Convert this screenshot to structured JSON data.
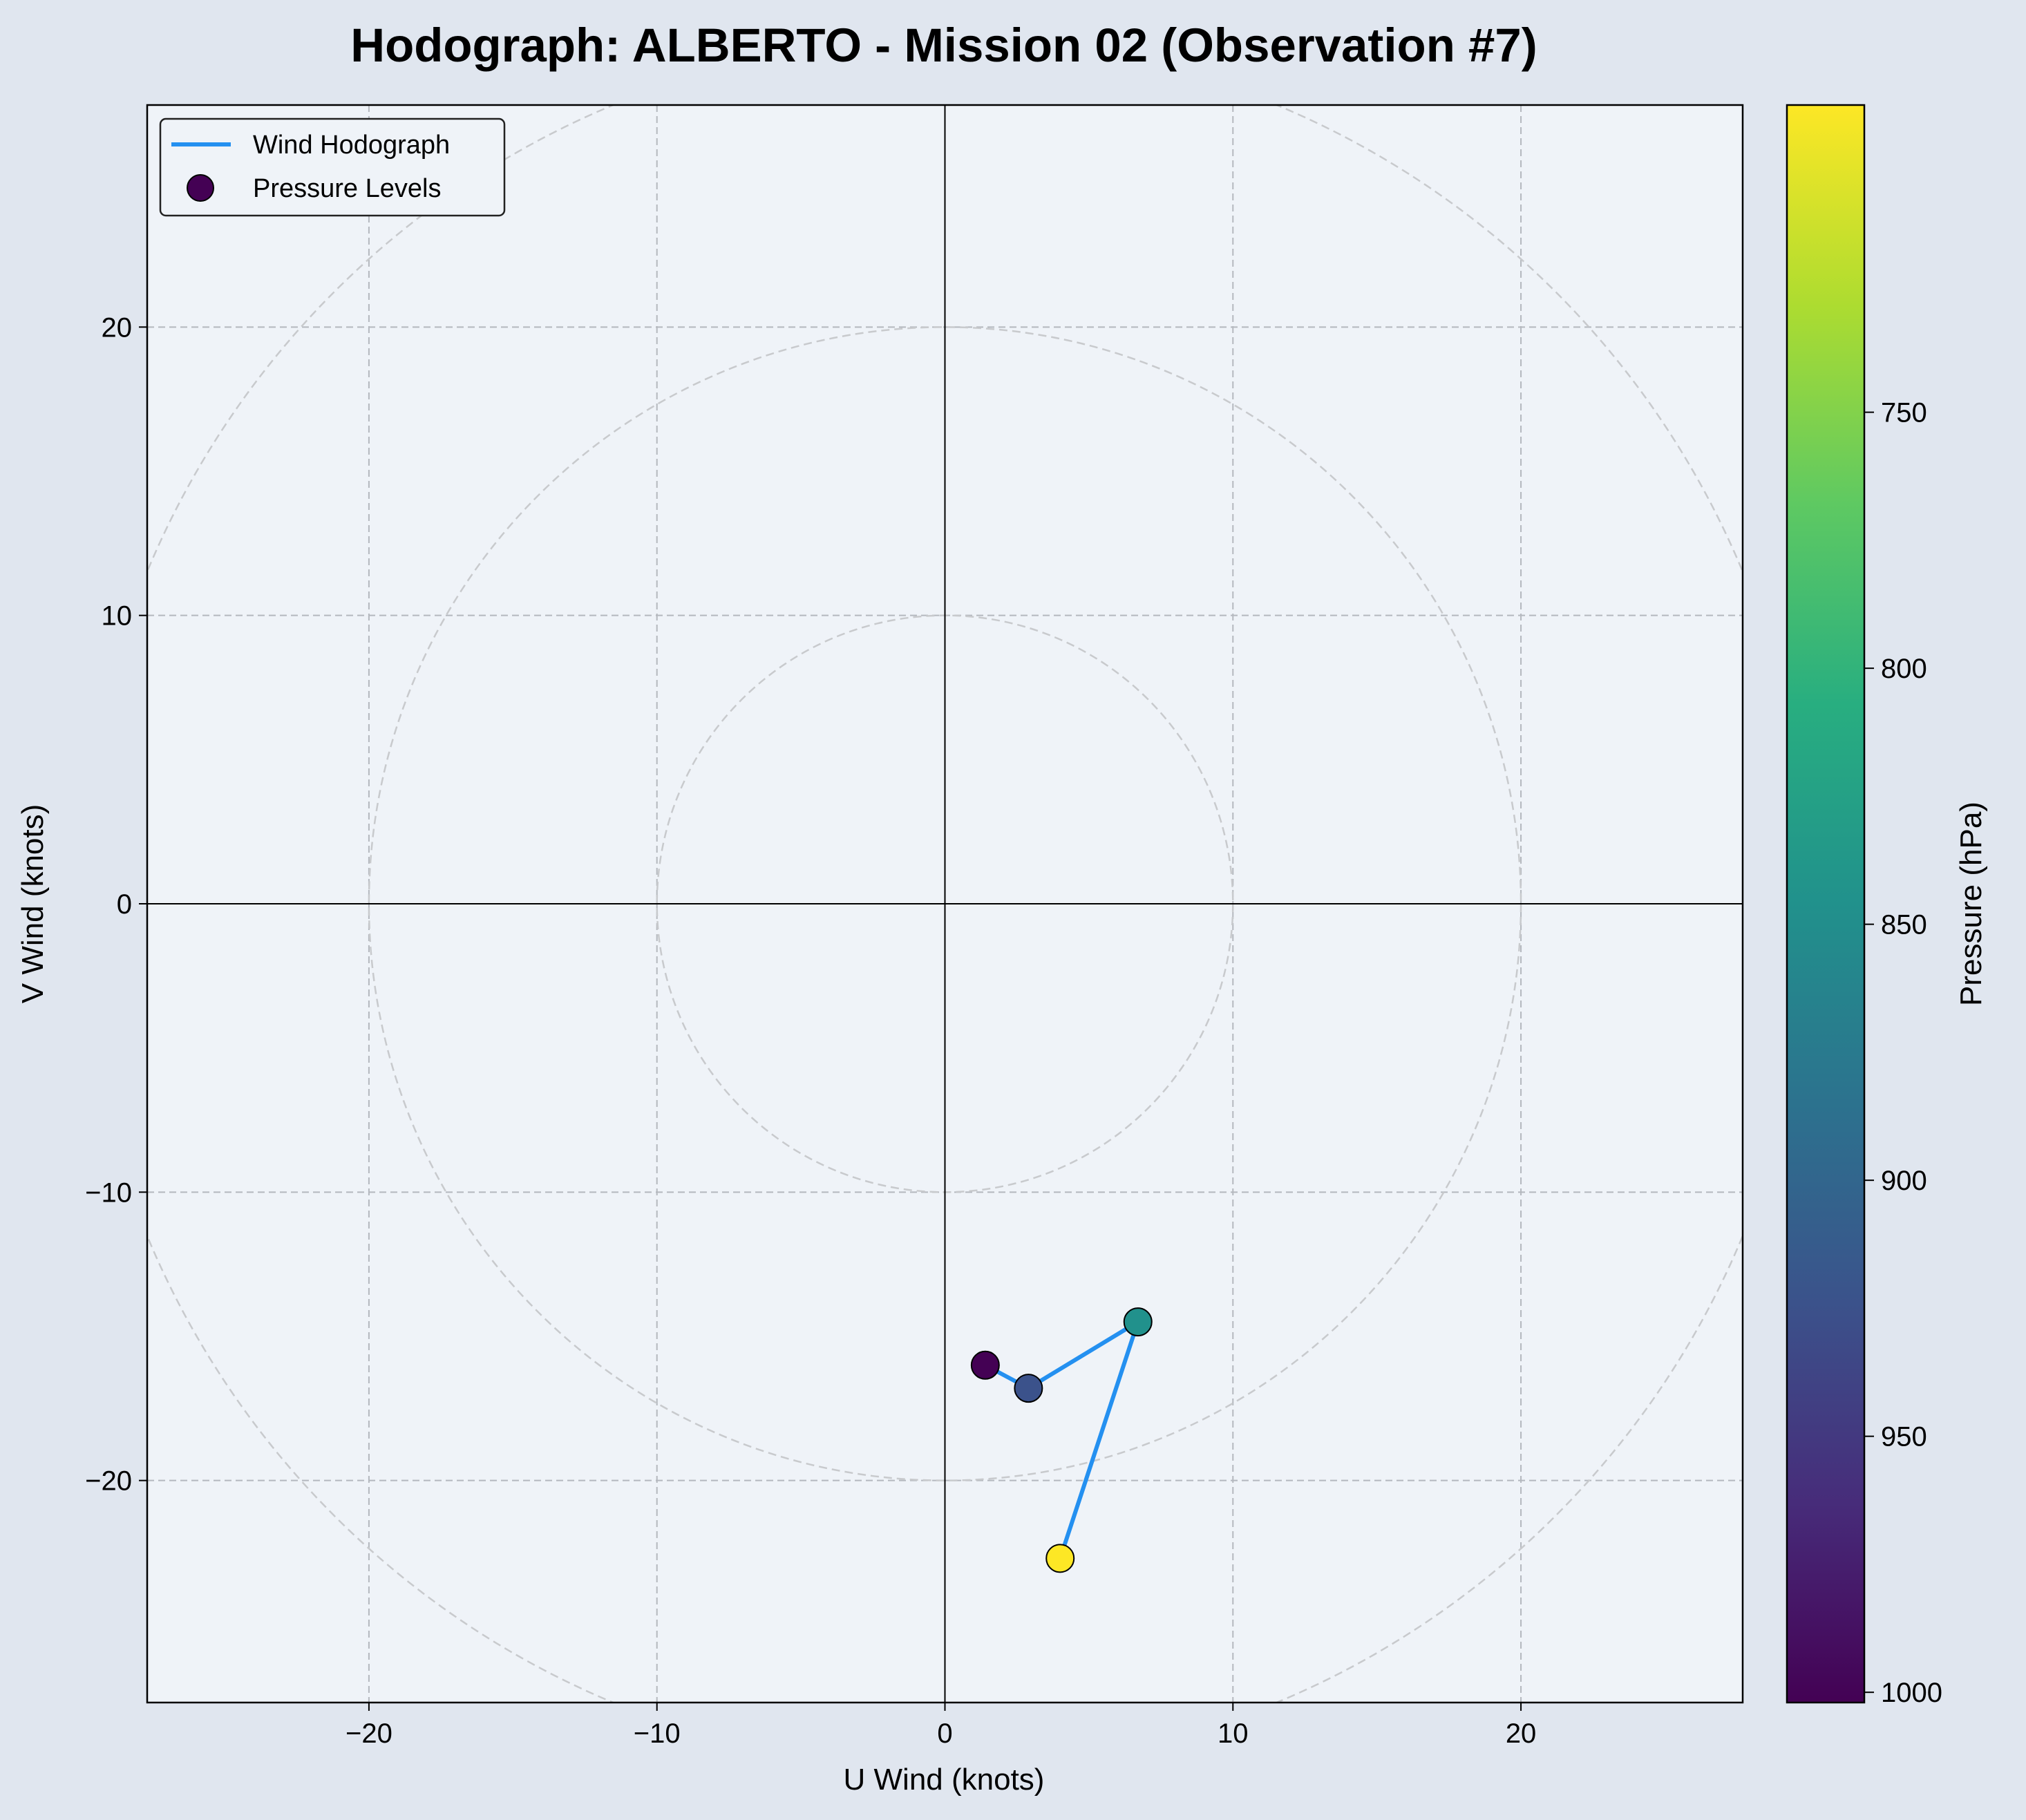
{
  "chart_data": {
    "type": "scatter",
    "title": "Hodograph: ALBERTO - Mission 02 (Observation #7)",
    "xlabel": "U Wind (knots)",
    "ylabel": "V Wind (knots)",
    "xlim": [
      -27.7,
      27.7
    ],
    "ylim": [
      -27.7,
      27.7
    ],
    "xticks": [
      -20,
      -10,
      0,
      10,
      20
    ],
    "yticks": [
      -20,
      -10,
      0,
      10,
      20
    ],
    "grid": true,
    "range_rings": [
      10,
      20,
      30
    ],
    "legend_position": "upper-left",
    "series": [
      {
        "name": "Wind Hodograph",
        "kind": "line",
        "color": "#2490f0",
        "x": [
          1.4,
          2.9,
          6.7,
          4.0
        ],
        "y": [
          -16.0,
          -16.8,
          -14.5,
          -22.7
        ]
      },
      {
        "name": "Pressure Levels",
        "kind": "scatter",
        "x": [
          1.4,
          2.9,
          6.7,
          4.0
        ],
        "y": [
          -16.0,
          -16.8,
          -14.5,
          -22.7
        ],
        "pressure": [
          1000,
          925,
          850,
          700
        ],
        "colors": [
          "#440154",
          "#3b528b",
          "#21918c",
          "#fde725"
        ]
      }
    ],
    "colorbar": {
      "label": "Pressure (hPa)",
      "range": [
        1002,
        690
      ],
      "ticks": [
        750,
        800,
        850,
        900,
        950,
        1000
      ],
      "colormap": "viridis"
    }
  }
}
